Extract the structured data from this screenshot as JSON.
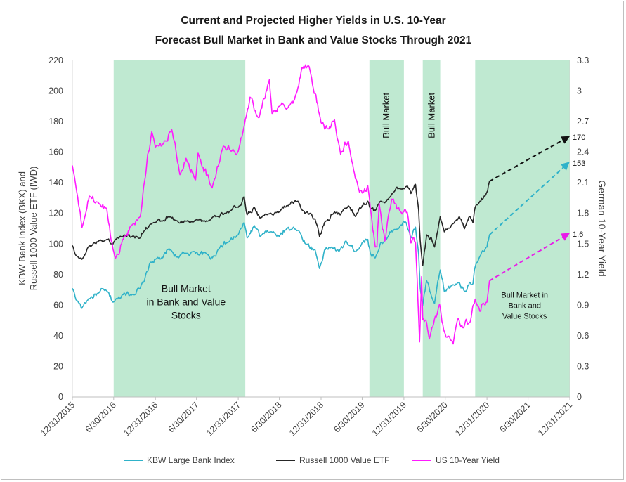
{
  "chart_data": {
    "type": "line",
    "title": [
      "Current and Projected Higher Yields in U.S. 10-Year",
      "Forecast Bull Market in Bank and Value Stocks Through 2021"
    ],
    "ylabel_left": [
      "KBW Bank Index (BKX) and",
      "Russell 1000 Value ETF (IWD)"
    ],
    "ylabel_right": "German 10-Year Yield",
    "ylim_left": [
      0,
      220
    ],
    "ylim_right": [
      0,
      3.3
    ],
    "yticks_left": [
      "0",
      "20",
      "40",
      "60",
      "80",
      "100",
      "120",
      "140",
      "160",
      "180",
      "200",
      "220"
    ],
    "yticks_right": [
      "0",
      "0.3",
      "0.6",
      "0.9",
      "1.2",
      "1.5",
      "1.8",
      "2.1",
      "2.4",
      "2.7",
      "3",
      "3.3"
    ],
    "xlim": [
      "2015-12-31",
      "2021-12-31"
    ],
    "xticks": [
      "12/31/2015",
      "6/30/2016",
      "12/31/2016",
      "6/30/2017",
      "12/31/2017",
      "6/30/2018",
      "12/31/2018",
      "6/30/2019",
      "12/31/2019",
      "6/30/2020",
      "12/31/2020",
      "6/30/2021",
      "12/31/2021"
    ],
    "grid": false,
    "legend_position": "bottom",
    "shaded_regions": [
      {
        "start": "2016-06-30",
        "end": "2018-01-31"
      },
      {
        "start": "2019-08-01",
        "end": "2019-12-31"
      },
      {
        "start": "2020-03-23",
        "end": "2020-06-08"
      },
      {
        "start": "2020-11-09",
        "end": "2021-12-31"
      }
    ],
    "shade_color": "#bfe9d1",
    "annotations": [
      {
        "text": [
          "Bull Market",
          "in Bank and Value",
          "Stocks"
        ],
        "x": "2017-05-15",
        "y": 60,
        "size": "large"
      },
      {
        "text": [
          "Bull Market in",
          "Bank and",
          "Value Stocks"
        ],
        "x": "2021-06-15",
        "y": 58,
        "size": "small"
      },
      {
        "text": [
          "Bull Market"
        ],
        "x": "2019-10-15",
        "y": 184,
        "rotated": true
      },
      {
        "text": [
          "Bull Market"
        ],
        "x": "2020-05-01",
        "y": 184,
        "rotated": true
      }
    ],
    "series": [
      {
        "name": "KBW Large Bank Index",
        "axis": "left",
        "color": "#2fb2c9",
        "points": [
          [
            "2015-12-31",
            71
          ],
          [
            "2016-01-20",
            63
          ],
          [
            "2016-02-11",
            58
          ],
          [
            "2016-03-10",
            64
          ],
          [
            "2016-04-25",
            68
          ],
          [
            "2016-05-25",
            70
          ],
          [
            "2016-06-27",
            62
          ],
          [
            "2016-07-15",
            64
          ],
          [
            "2016-08-15",
            68
          ],
          [
            "2016-09-20",
            67
          ],
          [
            "2016-10-25",
            71
          ],
          [
            "2016-11-09",
            75
          ],
          [
            "2016-12-08",
            88
          ],
          [
            "2016-12-31",
            90
          ],
          [
            "2017-02-01",
            91
          ],
          [
            "2017-03-01",
            97
          ],
          [
            "2017-04-12",
            91
          ],
          [
            "2017-05-15",
            94
          ],
          [
            "2017-06-15",
            95
          ],
          [
            "2017-08-20",
            93
          ],
          [
            "2017-09-08",
            91
          ],
          [
            "2017-10-15",
            99
          ],
          [
            "2017-11-15",
            101
          ],
          [
            "2017-12-31",
            106
          ],
          [
            "2018-01-26",
            114
          ],
          [
            "2018-02-08",
            104
          ],
          [
            "2018-03-12",
            112
          ],
          [
            "2018-04-06",
            105
          ],
          [
            "2018-05-20",
            108
          ],
          [
            "2018-06-30",
            105
          ],
          [
            "2018-08-01",
            110
          ],
          [
            "2018-08-31",
            111
          ],
          [
            "2018-10-01",
            107
          ],
          [
            "2018-10-25",
            100
          ],
          [
            "2018-12-05",
            96
          ],
          [
            "2018-12-24",
            84
          ],
          [
            "2019-01-15",
            96
          ],
          [
            "2019-02-15",
            98
          ],
          [
            "2019-03-20",
            95
          ],
          [
            "2019-04-20",
            102
          ],
          [
            "2019-05-31",
            95
          ],
          [
            "2019-06-30",
            101
          ],
          [
            "2019-07-25",
            103
          ],
          [
            "2019-08-05",
            94
          ],
          [
            "2019-08-27",
            91
          ],
          [
            "2019-09-20",
            101
          ],
          [
            "2019-10-15",
            103
          ],
          [
            "2019-11-15",
            109
          ],
          [
            "2019-12-15",
            112
          ],
          [
            "2020-01-10",
            114
          ],
          [
            "2020-01-31",
            104
          ],
          [
            "2020-02-20",
            111
          ],
          [
            "2020-03-05",
            93
          ],
          [
            "2020-03-12",
            71
          ],
          [
            "2020-03-23",
            60
          ],
          [
            "2020-04-09",
            76
          ],
          [
            "2020-04-30",
            66
          ],
          [
            "2020-05-14",
            61
          ],
          [
            "2020-06-08",
            83
          ],
          [
            "2020-06-26",
            69
          ],
          [
            "2020-07-31",
            73
          ],
          [
            "2020-08-31",
            75
          ],
          [
            "2020-09-23",
            69
          ],
          [
            "2020-10-15",
            75
          ],
          [
            "2020-10-30",
            74
          ],
          [
            "2020-11-09",
            85
          ],
          [
            "2020-11-30",
            92
          ],
          [
            "2020-12-15",
            95
          ],
          [
            "2020-12-31",
            98
          ],
          [
            "2021-01-06",
            102
          ],
          [
            "2021-01-11",
            106
          ]
        ]
      },
      {
        "name": "Russell 1000 Value ETF",
        "axis": "left",
        "color": "#262626",
        "points": [
          [
            "2015-12-31",
            99
          ],
          [
            "2016-01-20",
            92
          ],
          [
            "2016-02-11",
            90
          ],
          [
            "2016-03-10",
            98
          ],
          [
            "2016-04-25",
            102
          ],
          [
            "2016-05-31",
            103
          ],
          [
            "2016-06-27",
            100
          ],
          [
            "2016-07-15",
            104
          ],
          [
            "2016-08-15",
            106
          ],
          [
            "2016-09-20",
            105
          ],
          [
            "2016-10-25",
            104
          ],
          [
            "2016-11-09",
            108
          ],
          [
            "2016-12-08",
            113
          ],
          [
            "2016-12-31",
            114
          ],
          [
            "2017-02-01",
            115
          ],
          [
            "2017-03-01",
            118
          ],
          [
            "2017-04-12",
            114
          ],
          [
            "2017-05-15",
            115
          ],
          [
            "2017-06-30",
            116
          ],
          [
            "2017-08-20",
            115
          ],
          [
            "2017-09-30",
            118
          ],
          [
            "2017-10-31",
            120
          ],
          [
            "2017-11-30",
            122
          ],
          [
            "2017-12-31",
            124
          ],
          [
            "2018-01-26",
            131
          ],
          [
            "2018-02-08",
            119
          ],
          [
            "2018-03-12",
            124
          ],
          [
            "2018-04-06",
            117
          ],
          [
            "2018-05-20",
            120
          ],
          [
            "2018-06-30",
            121
          ],
          [
            "2018-08-01",
            125
          ],
          [
            "2018-09-20",
            128
          ],
          [
            "2018-10-10",
            122
          ],
          [
            "2018-10-31",
            121
          ],
          [
            "2018-12-05",
            116
          ],
          [
            "2018-12-24",
            105
          ],
          [
            "2019-01-15",
            114
          ],
          [
            "2019-02-28",
            121
          ],
          [
            "2019-03-25",
            119
          ],
          [
            "2019-04-30",
            125
          ],
          [
            "2019-05-31",
            118
          ],
          [
            "2019-06-30",
            125
          ],
          [
            "2019-07-25",
            128
          ],
          [
            "2019-08-05",
            123
          ],
          [
            "2019-08-27",
            122
          ],
          [
            "2019-09-20",
            128
          ],
          [
            "2019-10-15",
            128
          ],
          [
            "2019-11-15",
            134
          ],
          [
            "2019-12-15",
            136
          ],
          [
            "2020-01-15",
            138
          ],
          [
            "2020-01-31",
            133
          ],
          [
            "2020-02-20",
            139
          ],
          [
            "2020-03-05",
            122
          ],
          [
            "2020-03-12",
            102
          ],
          [
            "2020-03-23",
            86
          ],
          [
            "2020-04-09",
            106
          ],
          [
            "2020-04-30",
            104
          ],
          [
            "2020-05-14",
            98
          ],
          [
            "2020-06-08",
            118
          ],
          [
            "2020-06-26",
            108
          ],
          [
            "2020-07-31",
            113
          ],
          [
            "2020-08-31",
            118
          ],
          [
            "2020-09-23",
            110
          ],
          [
            "2020-10-15",
            118
          ],
          [
            "2020-10-30",
            114
          ],
          [
            "2020-11-09",
            124
          ],
          [
            "2020-11-30",
            128
          ],
          [
            "2020-12-15",
            130
          ],
          [
            "2020-12-31",
            134
          ],
          [
            "2021-01-06",
            138
          ],
          [
            "2021-01-11",
            141
          ]
        ]
      },
      {
        "name": "US 10-Year Yield",
        "axis": "right",
        "color": "#ff1aff",
        "points": [
          [
            "2015-12-31",
            2.27
          ],
          [
            "2016-01-20",
            2.0
          ],
          [
            "2016-02-11",
            1.66
          ],
          [
            "2016-03-15",
            1.97
          ],
          [
            "2016-04-25",
            1.9
          ],
          [
            "2016-05-31",
            1.84
          ],
          [
            "2016-06-27",
            1.45
          ],
          [
            "2016-07-08",
            1.36
          ],
          [
            "2016-08-15",
            1.57
          ],
          [
            "2016-09-20",
            1.69
          ],
          [
            "2016-10-25",
            1.77
          ],
          [
            "2016-11-09",
            2.06
          ],
          [
            "2016-12-15",
            2.6
          ],
          [
            "2016-12-31",
            2.45
          ],
          [
            "2017-02-01",
            2.48
          ],
          [
            "2017-03-13",
            2.62
          ],
          [
            "2017-04-18",
            2.18
          ],
          [
            "2017-05-15",
            2.34
          ],
          [
            "2017-06-26",
            2.13
          ],
          [
            "2017-07-07",
            2.39
          ],
          [
            "2017-09-07",
            2.05
          ],
          [
            "2017-10-26",
            2.46
          ],
          [
            "2017-11-30",
            2.41
          ],
          [
            "2017-12-31",
            2.41
          ],
          [
            "2018-01-31",
            2.72
          ],
          [
            "2018-02-21",
            2.94
          ],
          [
            "2018-04-02",
            2.74
          ],
          [
            "2018-05-17",
            3.11
          ],
          [
            "2018-05-29",
            2.78
          ],
          [
            "2018-06-30",
            2.85
          ],
          [
            "2018-08-15",
            2.86
          ],
          [
            "2018-08-29",
            2.88
          ],
          [
            "2018-10-08",
            3.23
          ],
          [
            "2018-11-08",
            3.24
          ],
          [
            "2018-12-31",
            2.69
          ],
          [
            "2019-01-31",
            2.63
          ],
          [
            "2019-02-28",
            2.72
          ],
          [
            "2019-03-27",
            2.38
          ],
          [
            "2019-04-30",
            2.51
          ],
          [
            "2019-05-31",
            2.14
          ],
          [
            "2019-06-30",
            2.0
          ],
          [
            "2019-07-25",
            2.07
          ],
          [
            "2019-08-27",
            1.47
          ],
          [
            "2019-09-03",
            1.47
          ],
          [
            "2019-09-13",
            1.9
          ],
          [
            "2019-10-08",
            1.53
          ],
          [
            "2019-11-07",
            1.94
          ],
          [
            "2019-12-15",
            1.82
          ],
          [
            "2020-01-15",
            1.81
          ],
          [
            "2020-01-31",
            1.51
          ],
          [
            "2020-02-20",
            1.52
          ],
          [
            "2020-03-09",
            0.54
          ],
          [
            "2020-03-18",
            1.18
          ],
          [
            "2020-03-23",
            0.76
          ],
          [
            "2020-04-09",
            0.73
          ],
          [
            "2020-04-21",
            0.57
          ],
          [
            "2020-06-05",
            0.91
          ],
          [
            "2020-06-26",
            0.64
          ],
          [
            "2020-08-04",
            0.52
          ],
          [
            "2020-08-26",
            0.77
          ],
          [
            "2020-09-15",
            0.68
          ],
          [
            "2020-10-15",
            0.73
          ],
          [
            "2020-10-26",
            0.84
          ],
          [
            "2020-11-09",
            0.96
          ],
          [
            "2020-11-30",
            0.84
          ],
          [
            "2020-12-15",
            0.92
          ],
          [
            "2020-12-31",
            0.93
          ],
          [
            "2021-01-06",
            1.04
          ],
          [
            "2021-01-11",
            1.14
          ]
        ]
      }
    ],
    "projections": [
      {
        "series": "KBW Large Bank Index",
        "axis": "left",
        "from": [
          "2021-01-11",
          106
        ],
        "to": [
          "2021-12-31",
          153
        ],
        "label": "153",
        "color": "#2fb2c9"
      },
      {
        "series": "Russell 1000 Value ETF",
        "axis": "left",
        "from": [
          "2021-01-11",
          141
        ],
        "to": [
          "2021-12-31",
          170
        ],
        "label": "170",
        "color": "#111111"
      },
      {
        "series": "US 10-Year Yield",
        "axis": "right",
        "from": [
          "2021-01-11",
          1.14
        ],
        "to": [
          "2021-12-31",
          1.6
        ],
        "label": "1.6",
        "color": "#e81ae8"
      }
    ]
  }
}
